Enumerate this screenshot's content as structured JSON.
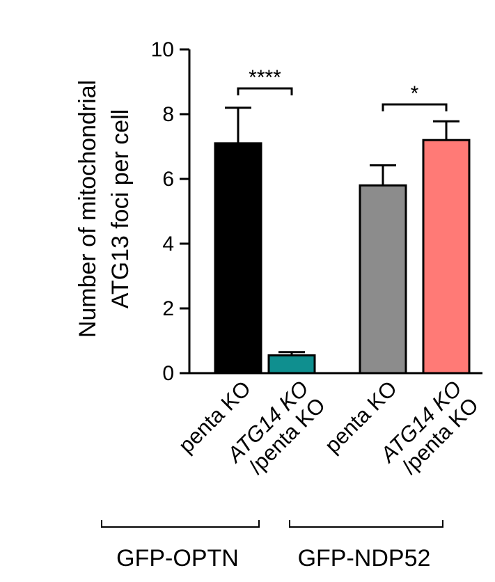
{
  "chart_data": {
    "type": "bar",
    "ylabel_line1": "Number of mitochondrial",
    "ylabel_line2": "ATG13 foci per cell",
    "ylim": [
      0,
      10
    ],
    "yticks": [
      "0",
      "2",
      "4",
      "6",
      "8",
      "10"
    ],
    "bars": [
      {
        "label_parts": [
          {
            "text": "penta KO",
            "italic": false
          }
        ],
        "value": 7.1,
        "error": 1.1,
        "color": "#000000"
      },
      {
        "label_parts": [
          {
            "text": "ATG14 KO",
            "italic": true
          },
          {
            "text": "/penta KO",
            "italic": false
          }
        ],
        "value": 0.55,
        "error": 0.1,
        "color": "#0f8f8f"
      },
      {
        "label_parts": [
          {
            "text": "penta KO",
            "italic": false
          }
        ],
        "value": 5.8,
        "error": 0.62,
        "color": "#8c8c8c"
      },
      {
        "label_parts": [
          {
            "text": "ATG14 KO",
            "italic": true
          },
          {
            "text": "/penta KO",
            "italic": false
          }
        ],
        "value": 7.2,
        "error": 0.58,
        "color": "#ff7a76"
      }
    ],
    "groups": [
      {
        "label": "GFP-OPTN",
        "bars": [
          0,
          1
        ]
      },
      {
        "label": "GFP-NDP52",
        "bars": [
          2,
          3
        ]
      }
    ],
    "significance": [
      {
        "bars": [
          0,
          1
        ],
        "label": "****"
      },
      {
        "bars": [
          2,
          3
        ],
        "label": "*"
      }
    ]
  }
}
